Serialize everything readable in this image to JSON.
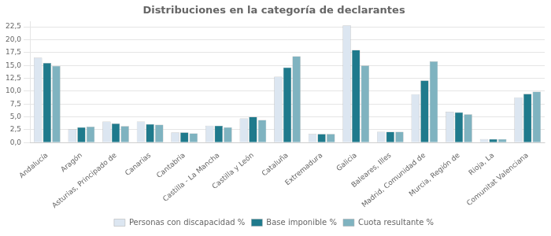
{
  "chart_data": {
    "type": "bar",
    "title": "Distribuciones en la categoría de declarantes",
    "categories": [
      "Andalucía",
      "Aragón",
      "Asturias, Principado de",
      "Canarias",
      "Cantabria",
      "Castilla - La Mancha",
      "Castilla y León",
      "Cataluña",
      "Extremadura",
      "Galicia",
      "Baleares, Illes",
      "Madrid, Comunidad de",
      "Murcia, Región de",
      "Rioja, La",
      "Comunitat Valenciana"
    ],
    "series": [
      {
        "name": "Personas con discapacidad %",
        "color": "#dce6f1",
        "values": [
          16.5,
          2.6,
          4.1,
          4.1,
          2.0,
          3.3,
          4.7,
          12.8,
          1.7,
          22.8,
          2.1,
          9.4,
          6.0,
          0.7,
          8.8
        ]
      },
      {
        "name": "Base imponible %",
        "color": "#1f7a8c",
        "values": [
          15.5,
          3.0,
          3.7,
          3.6,
          2.0,
          3.3,
          5.0,
          14.6,
          1.7,
          18.0,
          2.1,
          12.1,
          5.9,
          0.7,
          9.5
        ]
      },
      {
        "name": "Cuota resultante %",
        "color": "#7fb3c0",
        "values": [
          14.9,
          3.1,
          3.2,
          3.5,
          1.8,
          3.0,
          4.4,
          16.8,
          1.7,
          15.0,
          2.1,
          15.8,
          5.5,
          0.7,
          9.9
        ]
      }
    ],
    "ylim": [
      0,
      23.5
    ],
    "yticks": [
      {
        "value": 0,
        "label": "0,0"
      },
      {
        "value": 2.5,
        "label": "2,5"
      },
      {
        "value": 5,
        "label": "5,0"
      },
      {
        "value": 7.5,
        "label": "7,5"
      },
      {
        "value": 10,
        "label": "10,0"
      },
      {
        "value": 12.5,
        "label": "12,5"
      },
      {
        "value": 15,
        "label": "15,0"
      },
      {
        "value": 17.5,
        "label": "17,5"
      },
      {
        "value": 20,
        "label": "20,0"
      },
      {
        "value": 22.5,
        "label": "22,5"
      }
    ],
    "grid": true,
    "legend": "bottom"
  }
}
